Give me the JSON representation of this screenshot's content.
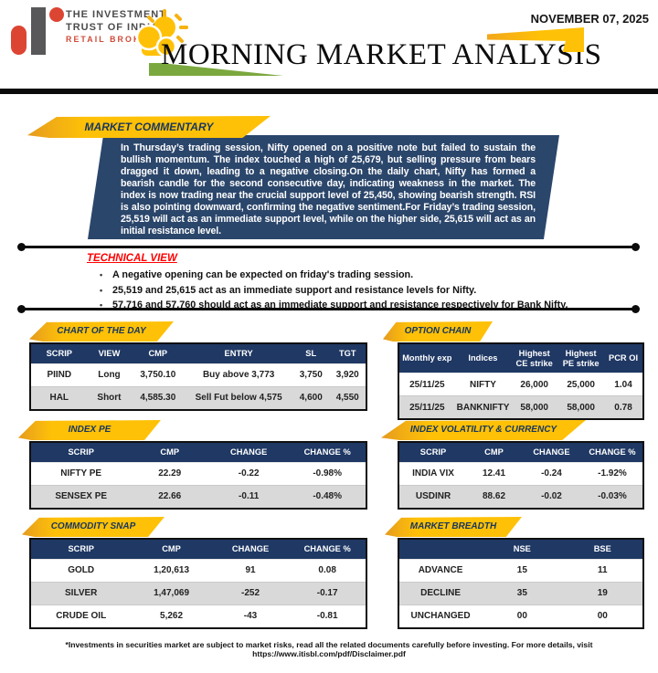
{
  "header": {
    "logo": {
      "line1": "THE INVESTMENT",
      "line2": "TRUST OF INDIA",
      "line3": "RETAIL BROKING"
    },
    "date": "NOVEMBER 07, 2025",
    "title": "MORNING MARKET ANALYSIS"
  },
  "icons": {
    "logo_mark": "iti-lettermark",
    "masthead": "sun-clouds-icon",
    "decorations": [
      "green-swoosh",
      "yellow-corner-arrow"
    ]
  },
  "colors": {
    "navy": "#1F3864",
    "commentary_navy": "#2B466B",
    "yellow": "#FFC107",
    "yellow_dark": "#E59A1E",
    "red_accent": "#FF0000",
    "logo_red": "#D04A38",
    "row_gray": "#D9D9D9",
    "green": "#7BA83E"
  },
  "commentary": {
    "banner": "MARKET COMMENTARY",
    "body": "In Thursday’s trading session, Nifty opened on a positive note but failed to sustain the bullish momentum. The index touched a high of 25,679, but selling pressure from bears dragged it down, leading to a negative closing.On the daily chart, Nifty has formed a bearish candle for the second consecutive day, indicating weakness in the market. The index is now trading near the crucial support level of 25,450, showing bearish strength. RSI is also pointing downward, confirming the negative sentiment.For Friday’s trading session, 25,519 will act as an immediate support level, while on the higher side, 25,615 will act as an initial resistance level."
  },
  "technical_view": {
    "title": "TECHNICAL VIEW",
    "bullets": [
      "A negative opening can be expected on friday's trading session.",
      "25,519 and 25,615 act as an immediate support and resistance levels for Nifty.",
      "57,716 and 57,760 should act as an immediate support and resistance respectively for Bank Nifty."
    ]
  },
  "tables": {
    "chart_of_the_day": {
      "banner": "CHART OF THE DAY",
      "headers": [
        "SCRIP",
        "VIEW",
        "CMP",
        "ENTRY",
        "SL",
        "TGT"
      ],
      "rows": [
        [
          "PIIND",
          "Long",
          "3,750.10",
          "Buy above 3,773",
          "3,750",
          "3,920"
        ],
        [
          "HAL",
          "Short",
          "4,585.30",
          "Sell Fut below 4,575",
          "4,600",
          "4,550"
        ]
      ]
    },
    "option_chain": {
      "banner": "OPTION CHAIN",
      "headers": [
        "Monthly exp",
        "Indices",
        "Highest CE strike",
        "Highest PE strike",
        "PCR OI"
      ],
      "rows": [
        [
          "25/11/25",
          "NIFTY",
          "26,000",
          "25,000",
          "1.04"
        ],
        [
          "25/11/25",
          "BANKNIFTY",
          "58,000",
          "58,000",
          "0.78"
        ]
      ]
    },
    "index_pe": {
      "banner": "INDEX PE",
      "headers": [
        "SCRIP",
        "CMP",
        "CHANGE",
        "CHANGE %"
      ],
      "rows": [
        [
          "NIFTY PE",
          "22.29",
          "-0.22",
          "-0.98%"
        ],
        [
          "SENSEX PE",
          "22.66",
          "-0.11",
          "-0.48%"
        ]
      ]
    },
    "index_volatility_currency": {
      "banner": "INDEX VOLATILITY & CURRENCY",
      "headers": [
        "SCRIP",
        "CMP",
        "CHANGE",
        "CHANGE %"
      ],
      "rows": [
        [
          "INDIA VIX",
          "12.41",
          "-0.24",
          "-1.92%"
        ],
        [
          "USDINR",
          "88.62",
          "-0.02",
          "-0.03%"
        ]
      ]
    },
    "commodity_snap": {
      "banner": "COMMODITY SNAP",
      "headers": [
        "SCRIP",
        "CMP",
        "CHANGE",
        "CHANGE %"
      ],
      "rows": [
        [
          "GOLD",
          "1,20,613",
          "91",
          "0.08"
        ],
        [
          "SILVER",
          "1,47,069",
          "-252",
          "-0.17"
        ],
        [
          "CRUDE OIL",
          "5,262",
          "-43",
          "-0.81"
        ]
      ]
    },
    "market_breadth": {
      "banner": "MARKET BREADTH",
      "headers": [
        "",
        "NSE",
        "BSE"
      ],
      "rows": [
        [
          "ADVANCE",
          "15",
          "11"
        ],
        [
          "DECLINE",
          "35",
          "19"
        ],
        [
          "UNCHANGED",
          "00",
          "00"
        ]
      ]
    }
  },
  "footer": {
    "disclaimer": "*Investments in securities market are subject to market risks, read all the related documents carefully before investing. For more details, visit https://www.itisbl.com/pdf/Disclaimer.pdf"
  }
}
